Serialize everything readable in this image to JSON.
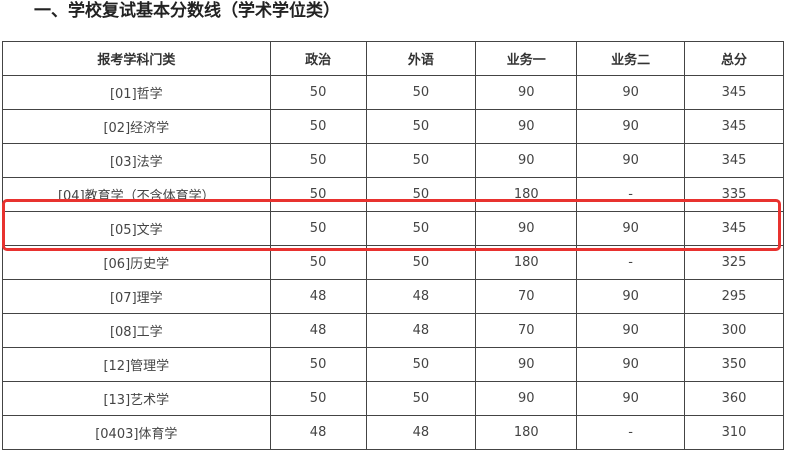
{
  "title": "一、学校复试基本分数线（学术学位类）",
  "headers": [
    "报考学科门类",
    "政治",
    "外语",
    "业务一",
    "业务二",
    "总分"
  ],
  "rows": [
    [
      "[01]哲学",
      "50",
      "50",
      "90",
      "90",
      "345"
    ],
    [
      "[02]经济学",
      "50",
      "50",
      "90",
      "90",
      "345"
    ],
    [
      "[03]法学",
      "50",
      "50",
      "90",
      "90",
      "345"
    ],
    [
      "[04]教育学（不含体育学）",
      "50",
      "50",
      "180",
      "-",
      "335"
    ],
    [
      "[05]文学",
      "50",
      "50",
      "90",
      "90",
      "345"
    ],
    [
      "[06]历史学",
      "50",
      "50",
      "180",
      "-",
      "325"
    ],
    [
      "[07]理学",
      "48",
      "48",
      "70",
      "90",
      "295"
    ],
    [
      "[08]工学",
      "48",
      "48",
      "70",
      "90",
      "300"
    ],
    [
      "[12]管理学",
      "50",
      "50",
      "90",
      "90",
      "350"
    ],
    [
      "[13]艺术学",
      "50",
      "50",
      "90",
      "90",
      "360"
    ],
    [
      "[0403]体育学",
      "48",
      "48",
      "180",
      "-",
      "310"
    ]
  ],
  "highlight_color": "#e8322f"
}
